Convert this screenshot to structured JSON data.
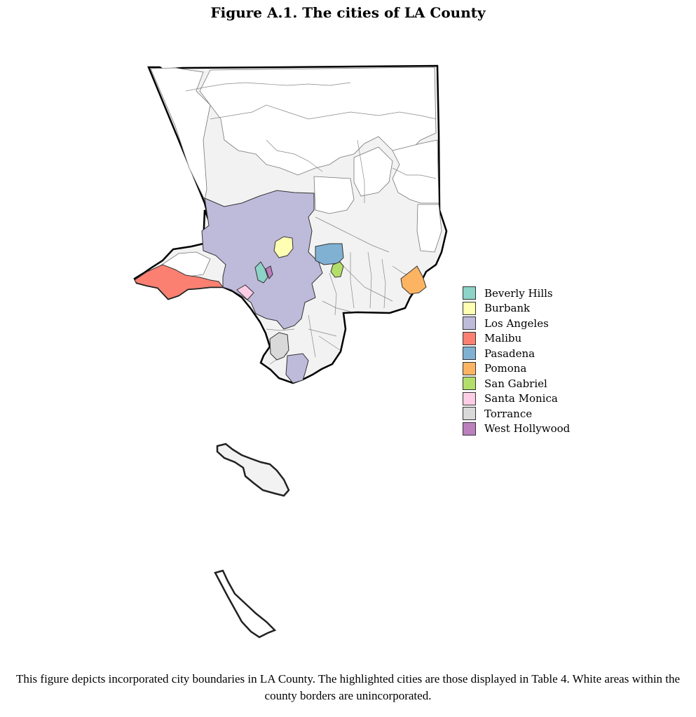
{
  "title": "Figure A.1.  The cities of LA County",
  "caption": "This figure depicts incorporated city boundaries in LA County. The highlighted cities are those displayed in Table 4. White areas within the county borders are unincorporated.",
  "colors": {
    "incorporated_other": "#f2f2f2",
    "county_border": "#000000",
    "city_border": "#777777"
  },
  "legend": [
    {
      "id": "beverly-hills",
      "label": "Beverly Hills",
      "color": "#8dd3c7"
    },
    {
      "id": "burbank",
      "label": "Burbank",
      "color": "#ffffb3"
    },
    {
      "id": "los-angeles",
      "label": "Los Angeles",
      "color": "#bebada"
    },
    {
      "id": "malibu",
      "label": "Malibu",
      "color": "#fb8072"
    },
    {
      "id": "pasadena",
      "label": "Pasadena",
      "color": "#80b1d3"
    },
    {
      "id": "pomona",
      "label": "Pomona",
      "color": "#fdb462"
    },
    {
      "id": "san-gabriel",
      "label": "San Gabriel",
      "color": "#b3de69"
    },
    {
      "id": "santa-monica",
      "label": "Santa Monica",
      "color": "#fccde5"
    },
    {
      "id": "torrance",
      "label": "Torrance",
      "color": "#d9d9d9"
    },
    {
      "id": "west-hollywood",
      "label": "West Hollywood",
      "color": "#bc80bd"
    }
  ]
}
